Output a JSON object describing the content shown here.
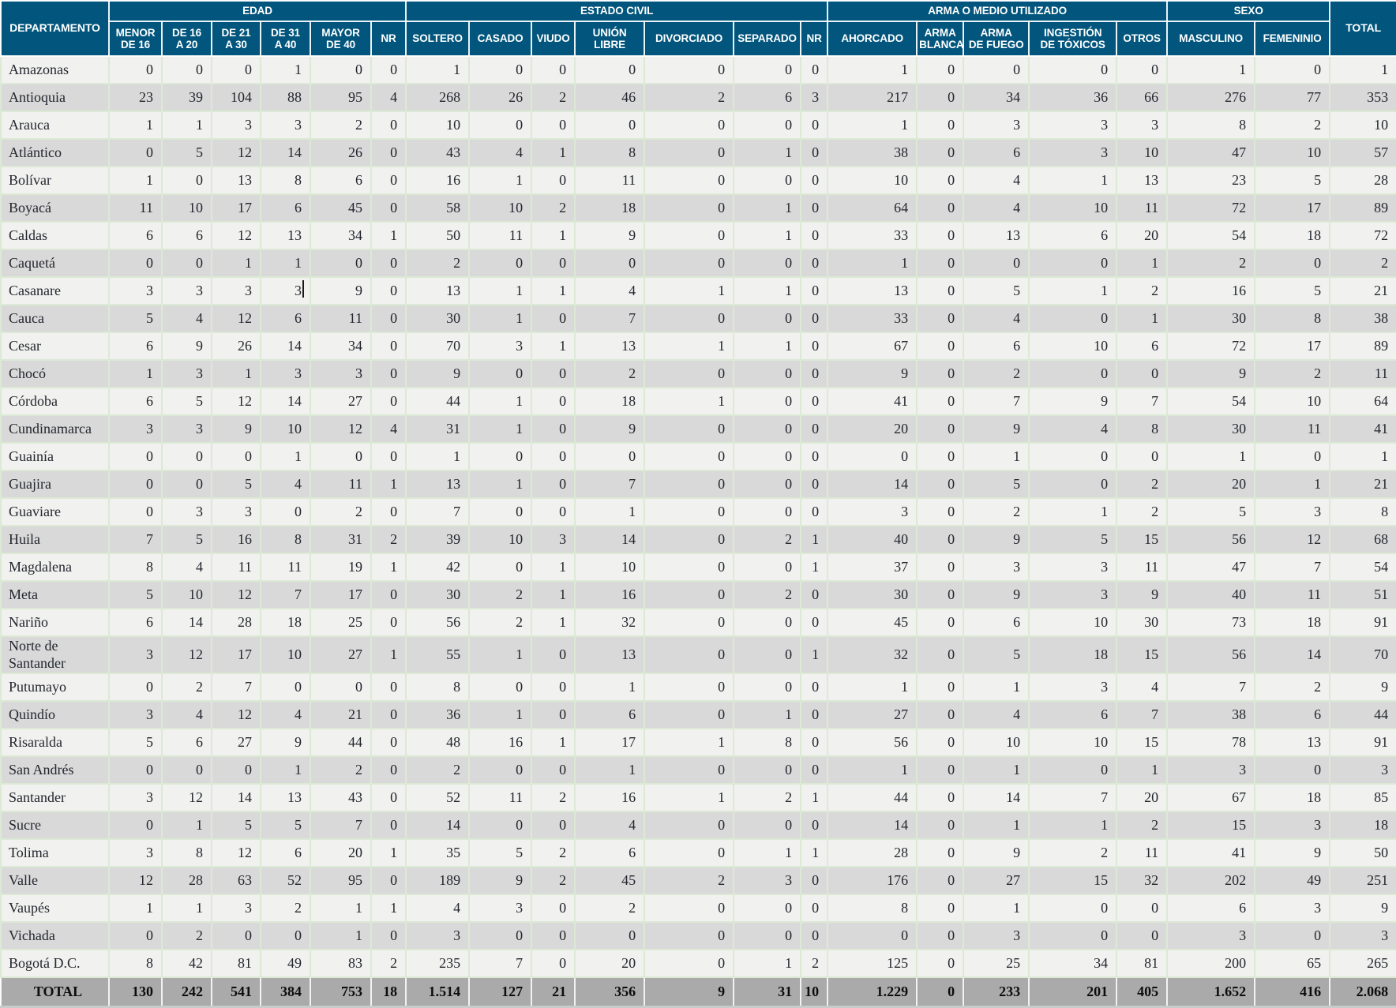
{
  "colors": {
    "header_bg": "#02567D",
    "header_text": "#FFFFFF",
    "row_light": "#F1F1EF",
    "row_dark": "#D9D9D9",
    "total_row_bg": "#ABAAAA",
    "grid_line": "#DCE9D5",
    "body_text": "#23262E"
  },
  "table": {
    "corner_header": "DEPARTAMENTO",
    "total_header": "TOTAL",
    "groups": [
      {
        "label": "EDAD",
        "columns": [
          "MENOR\nDE 16",
          "DE 16\nA 20",
          "DE 21\nA 30",
          "DE 31\nA 40",
          "MAYOR\nDE 40",
          "NR"
        ]
      },
      {
        "label": "ESTADO CIVIL",
        "columns": [
          "SOLTERO",
          "CASADO",
          "VIUDO",
          "UNIÓN\nLIBRE",
          "DIVORCIADO",
          "SEPARADO",
          "NR"
        ]
      },
      {
        "label": "ARMA O MEDIO UTILIZADO",
        "columns": [
          "AHORCADO",
          "ARMA\nBLANCA",
          "ARMA\nDE FUEGO",
          "INGESTIÓN\nDE TÓXICOS",
          "OTROS"
        ]
      },
      {
        "label": "SEXO",
        "columns": [
          "MASCULINO",
          "FEMENINIO"
        ]
      }
    ],
    "rows": [
      {
        "name": "Amazonas",
        "values": [
          0,
          0,
          0,
          1,
          0,
          0,
          1,
          0,
          0,
          0,
          0,
          0,
          0,
          1,
          0,
          0,
          0,
          0,
          1,
          0,
          1
        ]
      },
      {
        "name": "Antioquia",
        "values": [
          23,
          39,
          104,
          88,
          95,
          4,
          268,
          26,
          2,
          46,
          2,
          6,
          3,
          217,
          0,
          34,
          36,
          66,
          276,
          77,
          353
        ]
      },
      {
        "name": "Arauca",
        "values": [
          1,
          1,
          3,
          3,
          2,
          0,
          10,
          0,
          0,
          0,
          0,
          0,
          0,
          1,
          0,
          3,
          3,
          3,
          8,
          2,
          10
        ]
      },
      {
        "name": "Atlántico",
        "values": [
          0,
          5,
          12,
          14,
          26,
          0,
          43,
          4,
          1,
          8,
          0,
          1,
          0,
          38,
          0,
          6,
          3,
          10,
          47,
          10,
          57
        ]
      },
      {
        "name": "Bolívar",
        "values": [
          1,
          0,
          13,
          8,
          6,
          0,
          16,
          1,
          0,
          11,
          0,
          0,
          0,
          10,
          0,
          4,
          1,
          13,
          23,
          5,
          28
        ]
      },
      {
        "name": "Boyacá",
        "values": [
          11,
          10,
          17,
          6,
          45,
          0,
          58,
          10,
          2,
          18,
          0,
          1,
          0,
          64,
          0,
          4,
          10,
          11,
          72,
          17,
          89
        ]
      },
      {
        "name": "Caldas",
        "values": [
          6,
          6,
          12,
          13,
          34,
          1,
          50,
          11,
          1,
          9,
          0,
          1,
          0,
          33,
          0,
          13,
          6,
          20,
          54,
          18,
          72
        ]
      },
      {
        "name": "Caquetá",
        "values": [
          0,
          0,
          1,
          1,
          0,
          0,
          2,
          0,
          0,
          0,
          0,
          0,
          0,
          1,
          0,
          0,
          0,
          1,
          2,
          0,
          2
        ]
      },
      {
        "name": "Casanare",
        "values": [
          3,
          3,
          3,
          3,
          9,
          0,
          13,
          1,
          1,
          4,
          1,
          1,
          0,
          13,
          0,
          5,
          1,
          2,
          16,
          5,
          21
        ]
      },
      {
        "name": "Cauca",
        "values": [
          5,
          4,
          12,
          6,
          11,
          0,
          30,
          1,
          0,
          7,
          0,
          0,
          0,
          33,
          0,
          4,
          0,
          1,
          30,
          8,
          38
        ]
      },
      {
        "name": "Cesar",
        "values": [
          6,
          9,
          26,
          14,
          34,
          0,
          70,
          3,
          1,
          13,
          1,
          1,
          0,
          67,
          0,
          6,
          10,
          6,
          72,
          17,
          89
        ]
      },
      {
        "name": "Chocó",
        "values": [
          1,
          3,
          1,
          3,
          3,
          0,
          9,
          0,
          0,
          2,
          0,
          0,
          0,
          9,
          0,
          2,
          0,
          0,
          9,
          2,
          11
        ]
      },
      {
        "name": "Córdoba",
        "values": [
          6,
          5,
          12,
          14,
          27,
          0,
          44,
          1,
          0,
          18,
          1,
          0,
          0,
          41,
          0,
          7,
          9,
          7,
          54,
          10,
          64
        ]
      },
      {
        "name": "Cundinamarca",
        "values": [
          3,
          3,
          9,
          10,
          12,
          4,
          31,
          1,
          0,
          9,
          0,
          0,
          0,
          20,
          0,
          9,
          4,
          8,
          30,
          11,
          41
        ]
      },
      {
        "name": "Guainía",
        "values": [
          0,
          0,
          0,
          1,
          0,
          0,
          1,
          0,
          0,
          0,
          0,
          0,
          0,
          0,
          0,
          1,
          0,
          0,
          1,
          0,
          1
        ]
      },
      {
        "name": "Guajira",
        "values": [
          0,
          0,
          5,
          4,
          11,
          1,
          13,
          1,
          0,
          7,
          0,
          0,
          0,
          14,
          0,
          5,
          0,
          2,
          20,
          1,
          21
        ]
      },
      {
        "name": "Guaviare",
        "values": [
          0,
          3,
          3,
          0,
          2,
          0,
          7,
          0,
          0,
          1,
          0,
          0,
          0,
          3,
          0,
          2,
          1,
          2,
          5,
          3,
          8
        ]
      },
      {
        "name": "Huila",
        "values": [
          7,
          5,
          16,
          8,
          31,
          2,
          39,
          10,
          3,
          14,
          0,
          2,
          1,
          40,
          0,
          9,
          5,
          15,
          56,
          12,
          68
        ]
      },
      {
        "name": "Magdalena",
        "values": [
          8,
          4,
          11,
          11,
          19,
          1,
          42,
          0,
          1,
          10,
          0,
          0,
          1,
          37,
          0,
          3,
          3,
          11,
          47,
          7,
          54
        ]
      },
      {
        "name": "Meta",
        "values": [
          5,
          10,
          12,
          7,
          17,
          0,
          30,
          2,
          1,
          16,
          0,
          2,
          0,
          30,
          0,
          9,
          3,
          9,
          40,
          11,
          51
        ]
      },
      {
        "name": "Nariño",
        "values": [
          6,
          14,
          28,
          18,
          25,
          0,
          56,
          2,
          1,
          32,
          0,
          0,
          0,
          45,
          0,
          6,
          10,
          30,
          73,
          18,
          91
        ]
      },
      {
        "name": "Norte de Santander",
        "values": [
          3,
          12,
          17,
          10,
          27,
          1,
          55,
          1,
          0,
          13,
          0,
          0,
          1,
          32,
          0,
          5,
          18,
          15,
          56,
          14,
          70
        ]
      },
      {
        "name": "Putumayo",
        "values": [
          0,
          2,
          7,
          0,
          0,
          0,
          8,
          0,
          0,
          1,
          0,
          0,
          0,
          1,
          0,
          1,
          3,
          4,
          7,
          2,
          9
        ]
      },
      {
        "name": "Quindío",
        "values": [
          3,
          4,
          12,
          4,
          21,
          0,
          36,
          1,
          0,
          6,
          0,
          1,
          0,
          27,
          0,
          4,
          6,
          7,
          38,
          6,
          44
        ]
      },
      {
        "name": "Risaralda",
        "values": [
          5,
          6,
          27,
          9,
          44,
          0,
          48,
          16,
          1,
          17,
          1,
          8,
          0,
          56,
          0,
          10,
          10,
          15,
          78,
          13,
          91
        ]
      },
      {
        "name": "San Andrés",
        "values": [
          0,
          0,
          0,
          1,
          2,
          0,
          2,
          0,
          0,
          1,
          0,
          0,
          0,
          1,
          0,
          1,
          0,
          1,
          3,
          0,
          3
        ]
      },
      {
        "name": "Santander",
        "values": [
          3,
          12,
          14,
          13,
          43,
          0,
          52,
          11,
          2,
          16,
          1,
          2,
          1,
          44,
          0,
          14,
          7,
          20,
          67,
          18,
          85
        ]
      },
      {
        "name": "Sucre",
        "values": [
          0,
          1,
          5,
          5,
          7,
          0,
          14,
          0,
          0,
          4,
          0,
          0,
          0,
          14,
          0,
          1,
          1,
          2,
          15,
          3,
          18
        ]
      },
      {
        "name": "Tolima",
        "values": [
          3,
          8,
          12,
          6,
          20,
          1,
          35,
          5,
          2,
          6,
          0,
          1,
          1,
          28,
          0,
          9,
          2,
          11,
          41,
          9,
          50
        ]
      },
      {
        "name": "Valle",
        "values": [
          12,
          28,
          63,
          52,
          95,
          0,
          189,
          9,
          2,
          45,
          2,
          3,
          0,
          176,
          0,
          27,
          15,
          32,
          202,
          49,
          251
        ]
      },
      {
        "name": "Vaupés",
        "values": [
          1,
          1,
          3,
          2,
          1,
          1,
          4,
          3,
          0,
          2,
          0,
          0,
          0,
          8,
          0,
          1,
          0,
          0,
          6,
          3,
          9
        ]
      },
      {
        "name": "Vichada",
        "values": [
          0,
          2,
          0,
          0,
          1,
          0,
          3,
          0,
          0,
          0,
          0,
          0,
          0,
          0,
          0,
          3,
          0,
          0,
          3,
          0,
          3
        ]
      },
      {
        "name": "Bogotá D.C.",
        "values": [
          8,
          42,
          81,
          49,
          83,
          2,
          235,
          7,
          0,
          20,
          0,
          1,
          2,
          125,
          0,
          25,
          34,
          81,
          200,
          65,
          265
        ]
      }
    ],
    "total_row": {
      "name": "TOTAL",
      "values": [
        "130",
        "242",
        "541",
        "384",
        "753",
        "18",
        "1.514",
        "127",
        "21",
        "356",
        "9",
        "31",
        "10",
        "1.229",
        "0",
        "233",
        "201",
        "405",
        "1.652",
        "416",
        "2.068"
      ]
    }
  }
}
